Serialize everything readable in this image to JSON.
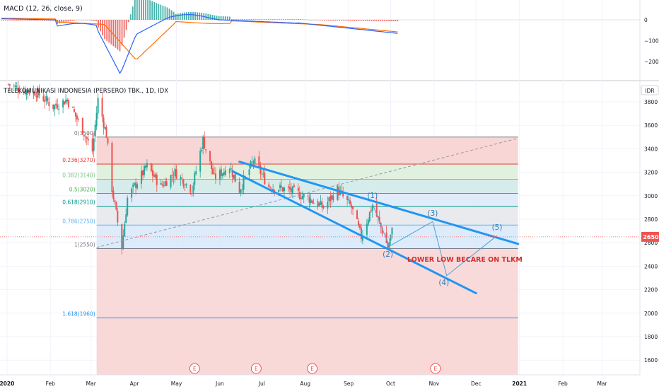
{
  "symbol_title": "TELEKOMUNIKASI INDONESIA (PERSERO) TBK., 1D, IDX",
  "currency": "IDR",
  "macd": {
    "label": "MACD (12, 26, close, 9)",
    "axis_ticks": [
      0,
      -100,
      -200
    ]
  },
  "chart_data": [
    {
      "type": "candlestick",
      "title": "TELEKOMUNIKASI INDONESIA (PERSERO) TBK., 1D, IDX",
      "ylim": [
        1500,
        3950
      ],
      "y_ticks": [
        1600,
        1800,
        2000,
        2200,
        2400,
        2600,
        2800,
        3000,
        3200,
        3400,
        3600,
        3800
      ],
      "x_ticks": [
        "2020",
        "Feb",
        "Mar",
        "Apr",
        "May",
        "Jun",
        "Jul",
        "Aug",
        "Sep",
        "Oct",
        "Nov",
        "Dec",
        "2021",
        "Feb",
        "Mar"
      ],
      "x_range": [
        "2019-12-27",
        "2021-03-28"
      ],
      "last_price": 2650,
      "anchors": [
        {
          "date": "2020-01-02",
          "price": 3950
        },
        {
          "date": "2020-01-12",
          "price": 3900
        },
        {
          "date": "2020-01-22",
          "price": 3880
        },
        {
          "date": "2020-02-03",
          "price": 3760
        },
        {
          "date": "2020-02-13",
          "price": 3820
        },
        {
          "date": "2020-02-24",
          "price": 3560
        },
        {
          "date": "2020-03-02",
          "price": 3380
        },
        {
          "date": "2020-03-06",
          "price": 3820
        },
        {
          "date": "2020-03-12",
          "price": 3520
        },
        {
          "date": "2020-03-16",
          "price": 3060
        },
        {
          "date": "2020-03-23",
          "price": 2560
        },
        {
          "date": "2020-03-27",
          "price": 2980
        },
        {
          "date": "2020-04-02",
          "price": 3100
        },
        {
          "date": "2020-04-10",
          "price": 3250
        },
        {
          "date": "2020-04-20",
          "price": 3080
        },
        {
          "date": "2020-04-30",
          "price": 3200
        },
        {
          "date": "2020-05-12",
          "price": 3050
        },
        {
          "date": "2020-05-20",
          "price": 3480
        },
        {
          "date": "2020-05-28",
          "price": 3150
        },
        {
          "date": "2020-06-08",
          "price": 3250
        },
        {
          "date": "2020-06-15",
          "price": 3050
        },
        {
          "date": "2020-06-25",
          "price": 3300
        },
        {
          "date": "2020-07-06",
          "price": 3080
        },
        {
          "date": "2020-07-20",
          "price": 3050
        },
        {
          "date": "2020-08-03",
          "price": 2980
        },
        {
          "date": "2020-08-14",
          "price": 2900
        },
        {
          "date": "2020-08-24",
          "price": 3050
        },
        {
          "date": "2020-09-03",
          "price": 2900
        },
        {
          "date": "2020-09-10",
          "price": 2650
        },
        {
          "date": "2020-09-18",
          "price": 2920
        },
        {
          "date": "2020-09-25",
          "price": 2700
        },
        {
          "date": "2020-09-29",
          "price": 2560
        },
        {
          "date": "2020-10-02",
          "price": 2700
        },
        {
          "date": "2020-10-05",
          "price": 2650
        }
      ],
      "fibonacci": [
        {
          "label": "0(3500)",
          "price": 3500,
          "color": "#787b86"
        },
        {
          "label": "0.236(3270)",
          "price": 3270,
          "color": "#e53935"
        },
        {
          "label": "0.382(3140)",
          "price": 3140,
          "color": "#81c784"
        },
        {
          "label": "0.5(3020)",
          "price": 3020,
          "color": "#4caf50"
        },
        {
          "label": "0.618(2910)",
          "price": 2910,
          "color": "#009688"
        },
        {
          "label": "0.786(2750)",
          "price": 2750,
          "color": "#64b5f6"
        },
        {
          "label": "1(2550)",
          "price": 2550,
          "color": "#787b86"
        },
        {
          "label": "1.618(1960)",
          "price": 1960,
          "color": "#2196f3"
        }
      ],
      "fib_range": {
        "start": "2020-03-05",
        "end": "2020-12-31"
      },
      "trendlines": [
        {
          "from": {
            "date": "2020-06-15",
            "price": 3290
          },
          "to": {
            "date": "2020-12-31",
            "price": 2590
          }
        },
        {
          "from": {
            "date": "2020-06-10",
            "price": 3210
          },
          "to": {
            "date": "2020-12-01",
            "price": 2170
          }
        }
      ],
      "dashed_line": {
        "from": {
          "date": "2020-03-05",
          "price": 2560
        },
        "to": {
          "date": "2020-12-31",
          "price": 3490
        }
      },
      "wave_path": [
        {
          "date": "2020-09-18",
          "price": 2930
        },
        {
          "date": "2020-09-30",
          "price": 2570
        },
        {
          "date": "2020-10-31",
          "price": 2780
        },
        {
          "date": "2020-11-10",
          "price": 2320
        },
        {
          "date": "2020-12-16",
          "price": 2660
        }
      ],
      "wave_labels": [
        {
          "label": "(1)",
          "date": "2020-09-18",
          "price": 2980
        },
        {
          "label": "(2)",
          "date": "2020-09-29",
          "price": 2480
        },
        {
          "label": "(3)",
          "date": "2020-10-31",
          "price": 2830
        },
        {
          "label": "(4)",
          "date": "2020-11-08",
          "price": 2240
        },
        {
          "label": "(5)",
          "date": "2020-12-16",
          "price": 2710
        }
      ],
      "annotation": {
        "text": "LOWER LOW BECARE ON TLKM",
        "date": "2020-11-23",
        "price": 2440,
        "color": "#d32f2f"
      },
      "events": [
        {
          "label": "E",
          "date": "2020-05-14"
        },
        {
          "label": "E",
          "date": "2020-06-27"
        },
        {
          "label": "E",
          "date": "2020-08-06"
        },
        {
          "label": "E",
          "date": "2020-11-02"
        }
      ]
    }
  ],
  "colors": {
    "up": "#26a69a",
    "down": "#ef5350",
    "trendline": "#2196f3",
    "macd_line": "#2962ff",
    "signal_line": "#ff6d00",
    "price_tag": "#ef5350",
    "fib_red_zone": "#f8d4d4",
    "fib_blue_zone": "#d4e6fa"
  }
}
